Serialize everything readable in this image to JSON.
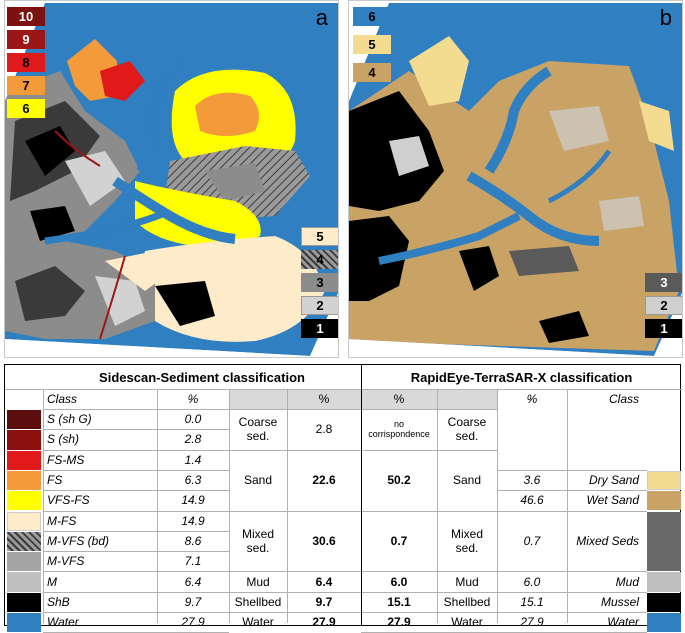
{
  "panel_a": {
    "letter": "a",
    "legend": [
      {
        "label": "10",
        "bg": "#7a1212",
        "fg": "#ffffff"
      },
      {
        "label": "9",
        "bg": "#9b1616",
        "fg": "#ffffff"
      },
      {
        "label": "8",
        "bg": "#e01a1a",
        "fg": "#000000"
      },
      {
        "label": "7",
        "bg": "#f39a3b",
        "fg": "#000000"
      },
      {
        "label": "6",
        "bg": "#ffff00",
        "fg": "#000000"
      },
      {
        "label": "5",
        "bg": "#fdebc9",
        "fg": "#000000"
      },
      {
        "label": "4",
        "bg": "hatch",
        "fg": "#000000"
      },
      {
        "label": "3",
        "bg": "#8c8c8c",
        "fg": "#000000"
      },
      {
        "label": "2",
        "bg": "#d2d2d2",
        "fg": "#000000"
      },
      {
        "label": "1",
        "bg": "#000000",
        "fg": "#ffffff"
      }
    ]
  },
  "panel_b": {
    "letter": "b",
    "legend": [
      {
        "label": "6",
        "bg": "#2f7fc1",
        "fg": "#000000"
      },
      {
        "label": "5",
        "bg": "#f3dc8f",
        "fg": "#000000"
      },
      {
        "label": "4",
        "bg": "#c9a266",
        "fg": "#000000"
      },
      {
        "label": "3",
        "bg": "#5a5a5a",
        "fg": "#ffffff"
      },
      {
        "label": "2",
        "bg": "#cfcfcf",
        "fg": "#000000"
      },
      {
        "label": "1",
        "bg": "#000000",
        "fg": "#ffffff"
      }
    ]
  },
  "table": {
    "title_left": "Sidescan-Sediment classification",
    "title_right": "RapidEye-TerraSAR-X classification",
    "header": {
      "class": "Class",
      "pct": "%",
      "group_pct": "%",
      "re_pct": "%",
      "re_pct2": "%",
      "re_class": "Class"
    },
    "left_rows": [
      {
        "cls": "S (sh G)",
        "pct": "0.0",
        "color": "#5c0d0d"
      },
      {
        "cls": "S (sh)",
        "pct": "2.8",
        "color": "#8b1010"
      },
      {
        "cls": "FS-MS",
        "pct": "1.4",
        "color": "#e01a1a"
      },
      {
        "cls": "FS",
        "pct": "6.3",
        "color": "#f39a3b"
      },
      {
        "cls": "VFS-FS",
        "pct": "14.9",
        "color": "#ffff00"
      },
      {
        "cls": "M-FS",
        "pct": "14.9",
        "color": "#fdebc9"
      },
      {
        "cls": "M-VFS (bd)",
        "pct": "8.6",
        "color": "hatch"
      },
      {
        "cls": "M-VFS",
        "pct": "7.1",
        "color": "#a3a3a3"
      },
      {
        "cls": "M",
        "pct": "6.4",
        "color": "#c0c0c0"
      },
      {
        "cls": "ShB",
        "pct": "9.7",
        "color": "#000000"
      },
      {
        "cls": "Water",
        "pct": "27.9",
        "color": "#2f7fc1"
      }
    ],
    "groups": [
      {
        "name": "Coarse\nsed.",
        "pct": "2.8",
        "re_pct": "no\ncorrispondence",
        "re_name": "Coarse\nsed.",
        "span": [
          0,
          2
        ],
        "bold": false
      },
      {
        "name": "Sand",
        "pct": "22.6",
        "re_pct": "50.2",
        "re_name": "Sand",
        "span": [
          2,
          5
        ],
        "bold": true
      },
      {
        "name": "Mixed\nsed.",
        "pct": "30.6",
        "re_pct": "0.7",
        "re_name": "Mixed\nsed.",
        "span": [
          5,
          8
        ],
        "bold": true
      },
      {
        "name": "Mud",
        "pct": "6.4",
        "re_pct": "6.0",
        "re_name": "Mud",
        "span": [
          8,
          9
        ],
        "bold": true
      },
      {
        "name": "Shellbed",
        "pct": "9.7",
        "re_pct": "15.1",
        "re_name": "Shellbed",
        "span": [
          9,
          10
        ],
        "bold": true
      },
      {
        "name": "Water",
        "pct": "27.9",
        "re_pct": "27.9",
        "re_name": "Water",
        "span": [
          10,
          11
        ],
        "bold": true
      }
    ],
    "right_rows": [
      {
        "pct": "3.6",
        "cls": "Dry Sand",
        "row": 3,
        "color": "#f3dc8f"
      },
      {
        "pct": "46.6",
        "cls": "Wet Sand",
        "row": 4,
        "color": "#c9a266"
      },
      {
        "pct": "0.7",
        "cls": "Mixed Seds",
        "row": 6,
        "color": "#6a6a6a"
      },
      {
        "pct": "6.0",
        "cls": "Mud",
        "row": 8,
        "color": "#c0c0c0"
      },
      {
        "pct": "15.1",
        "cls": "Mussel",
        "row": 9,
        "color": "#000000"
      },
      {
        "pct": "27.9",
        "cls": "Water",
        "row": 10,
        "color": "#2f7fc1"
      }
    ]
  }
}
